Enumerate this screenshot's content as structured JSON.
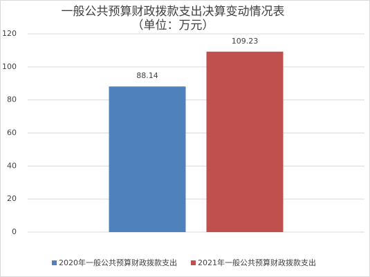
{
  "chart_data": {
    "type": "bar",
    "title": "一般公共预算财政拨款支出决算变动情况表",
    "subtitle": "（单位：万元）",
    "categories": [
      null
    ],
    "series": [
      {
        "name": "2020年一般公共预算财政拨款支出",
        "color": "#4f81bd",
        "values": [
          88.14
        ]
      },
      {
        "name": "2021年一般公共预算财政拨款支出",
        "color": "#c0504d",
        "values": [
          109.23
        ]
      }
    ],
    "ylim": [
      0,
      120
    ],
    "yticks": [
      0,
      20,
      40,
      60,
      80,
      100,
      120
    ],
    "grid": true,
    "legend": "bottom"
  }
}
